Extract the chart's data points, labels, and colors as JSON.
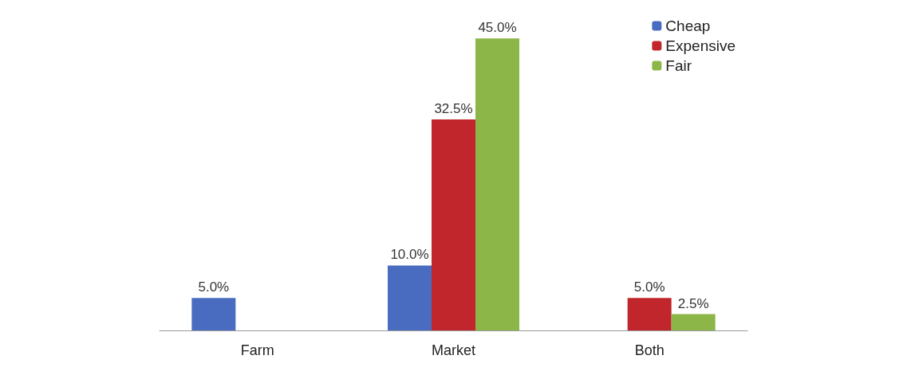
{
  "chart_data": {
    "type": "bar",
    "categories": [
      "Farm",
      "Market",
      "Both"
    ],
    "series": [
      {
        "name": "Cheap",
        "color": "#4a6cc0",
        "values": [
          5.0,
          10.0,
          null
        ],
        "value_labels": [
          "5.0%",
          "10.0%",
          null
        ]
      },
      {
        "name": "Expensive",
        "color": "#c0262c",
        "values": [
          null,
          32.5,
          5.0
        ],
        "value_labels": [
          null,
          "32.5%",
          "5.0%"
        ]
      },
      {
        "name": "Fair",
        "color": "#8db648",
        "values": [
          null,
          45.0,
          2.5
        ],
        "value_labels": [
          null,
          "45.0%",
          "2.5%"
        ]
      }
    ],
    "legend": "top right"
  }
}
